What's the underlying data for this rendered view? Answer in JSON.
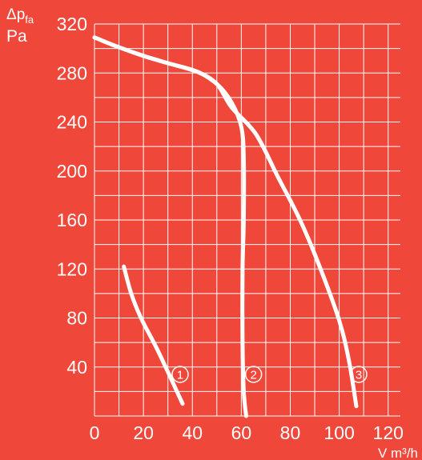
{
  "chart_data": {
    "type": "line",
    "ylabel": "Δpfa",
    "ylabel_main": "Δp",
    "ylabel_sub": "fa",
    "ylabel_unit": "Pa",
    "xlabel": "V m³/h",
    "x_ticks": [
      "0",
      "20",
      "40",
      "60",
      "80",
      "100",
      "120"
    ],
    "y_ticks": [
      "40",
      "80",
      "120",
      "160",
      "200",
      "240",
      "280",
      "320"
    ],
    "xlim": [
      0,
      125
    ],
    "ylim": [
      0,
      320
    ],
    "grid": true,
    "colors": {
      "background": "#ef473a",
      "foreground": "#ffffff"
    },
    "series": [
      {
        "name": "1",
        "points": [
          [
            12,
            122
          ],
          [
            15,
            100
          ],
          [
            19,
            80
          ],
          [
            25,
            57
          ],
          [
            30,
            36
          ],
          [
            36,
            10
          ]
        ],
        "marker_at": [
          35,
          34
        ]
      },
      {
        "name": "2",
        "points": [
          [
            0,
            309
          ],
          [
            10,
            301
          ],
          [
            20,
            294
          ],
          [
            30,
            288
          ],
          [
            42,
            281
          ],
          [
            50,
            271
          ],
          [
            56,
            256
          ],
          [
            60,
            236
          ],
          [
            61,
            210
          ],
          [
            61,
            160
          ],
          [
            60.5,
            120
          ],
          [
            60.5,
            60
          ],
          [
            61,
            20
          ],
          [
            62,
            0
          ]
        ],
        "marker_at": [
          65,
          34
        ]
      },
      {
        "name": "3",
        "points": [
          [
            0,
            309
          ],
          [
            10,
            301
          ],
          [
            20,
            294
          ],
          [
            30,
            288
          ],
          [
            42,
            281
          ],
          [
            50,
            271
          ],
          [
            56,
            252
          ],
          [
            66,
            230
          ],
          [
            75,
            195
          ],
          [
            84,
            160
          ],
          [
            92,
            122
          ],
          [
            100,
            78
          ],
          [
            104,
            45
          ],
          [
            107,
            8
          ]
        ],
        "marker_at": [
          108,
          34
        ]
      }
    ]
  }
}
